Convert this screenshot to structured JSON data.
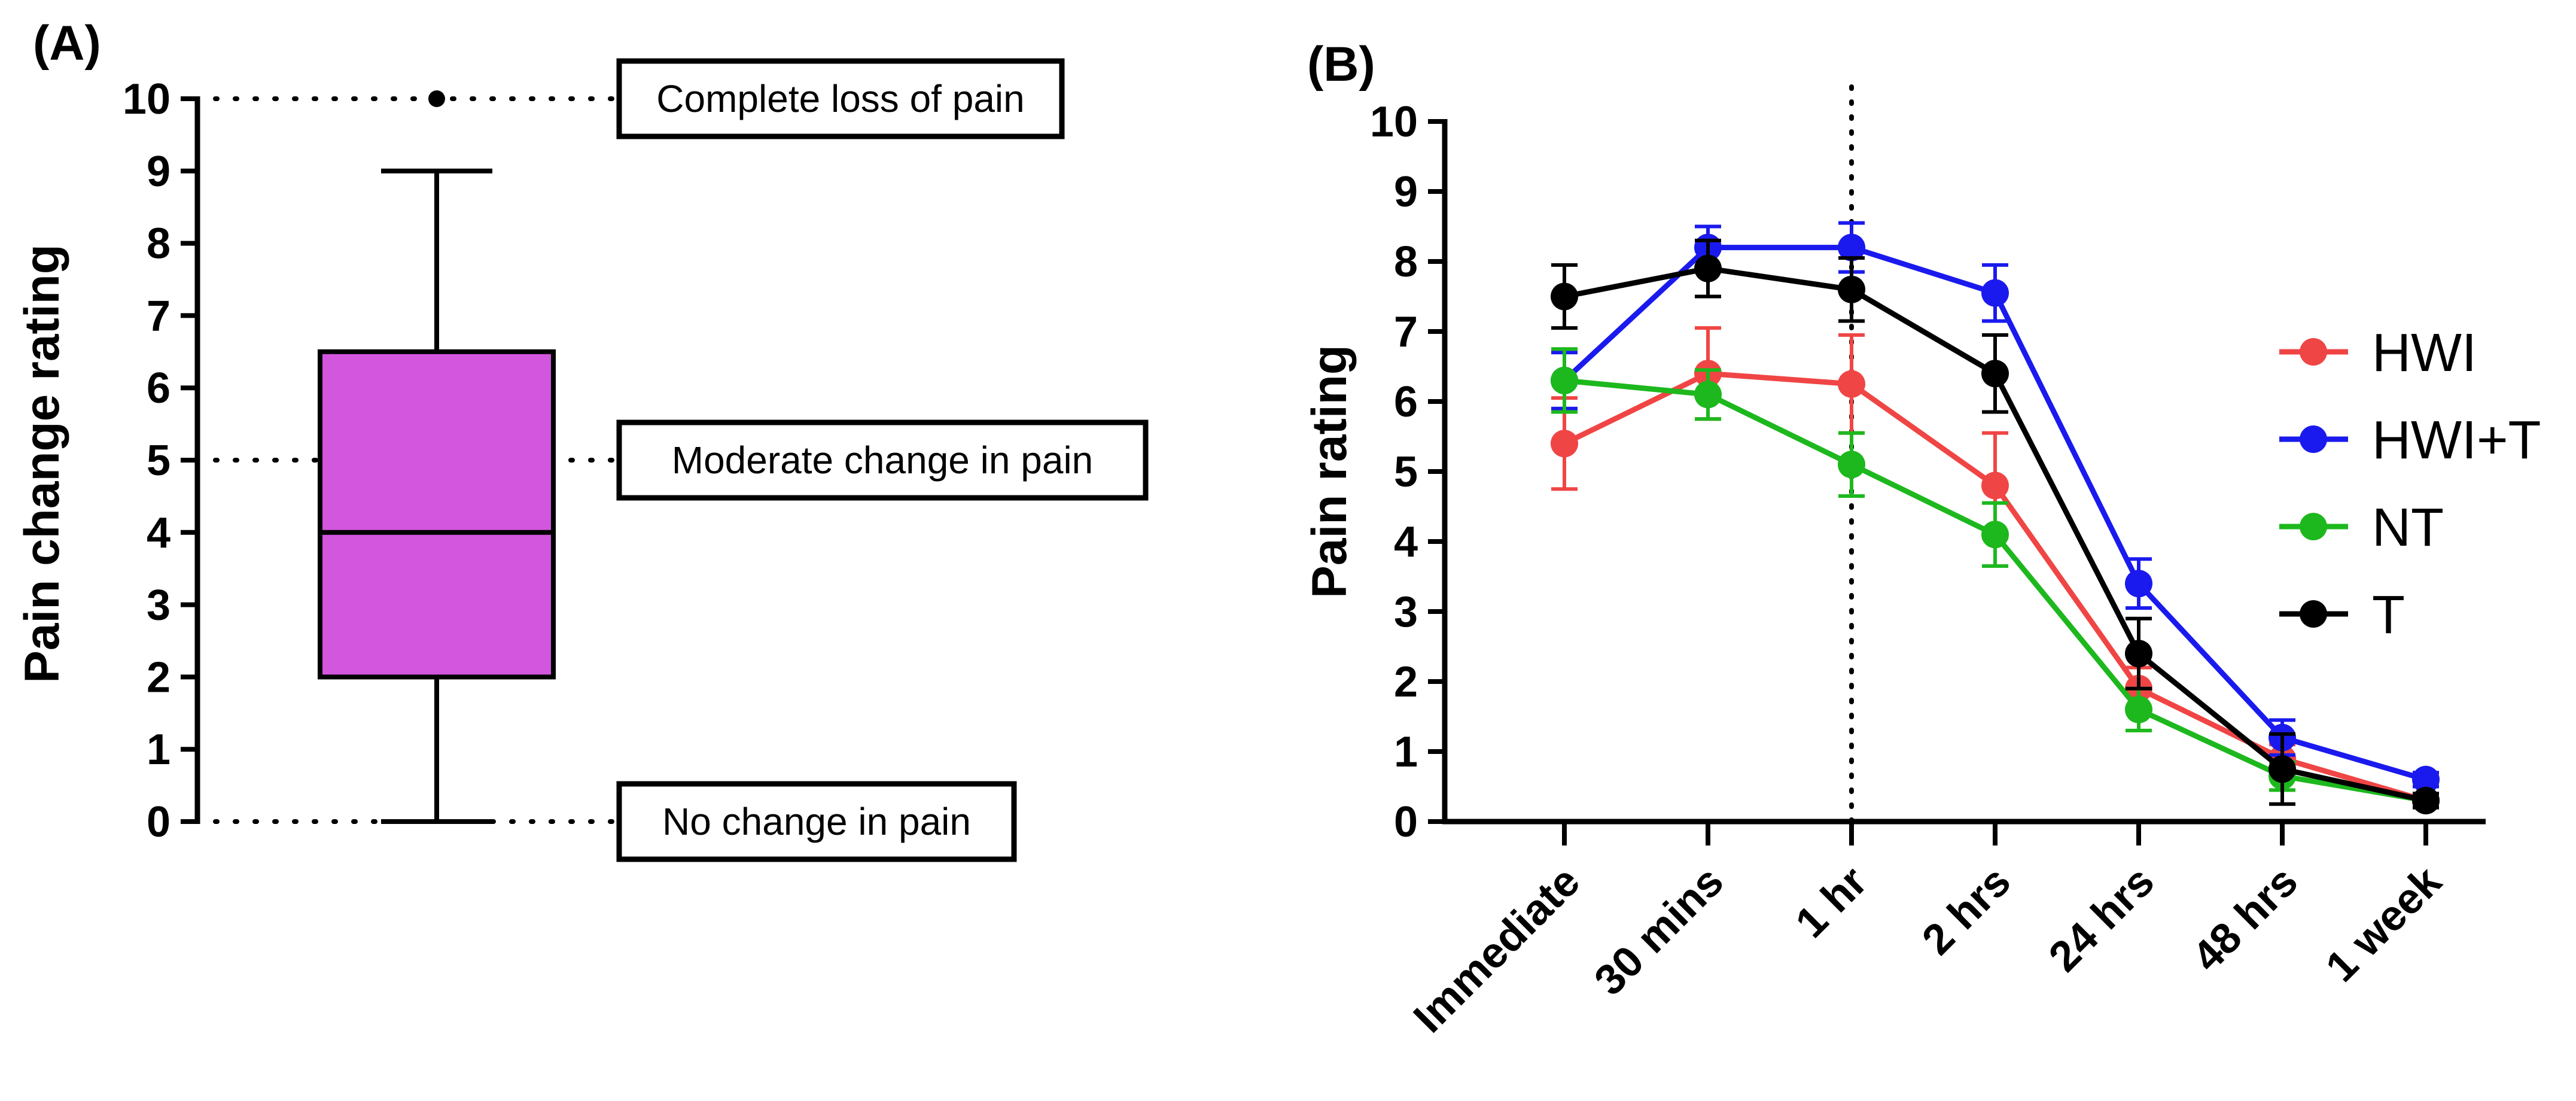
{
  "chart_data": [
    {
      "panel_label": "(A)",
      "type": "box",
      "ylabel": "Pain change rating",
      "ylim": [
        0,
        10
      ],
      "y_ticks": [
        "0",
        "1",
        "2",
        "3",
        "4",
        "5",
        "6",
        "7",
        "8",
        "9",
        "10"
      ],
      "box": {
        "whisker_low": 0,
        "q1": 2,
        "median": 4,
        "q3": 6.5,
        "whisker_high": 9,
        "outliers": [
          10
        ],
        "color": "#d256de"
      },
      "reference_lines": [
        {
          "value": 10,
          "label": "Complete loss of pain"
        },
        {
          "value": 5,
          "label": "Moderate change in pain"
        },
        {
          "value": 0,
          "label": "No change in pain"
        }
      ]
    },
    {
      "panel_label": "(B)",
      "type": "line",
      "ylabel": "Pain rating",
      "ylim": [
        0,
        10
      ],
      "y_ticks": [
        "0",
        "1",
        "2",
        "3",
        "4",
        "5",
        "6",
        "7",
        "8",
        "9",
        "10"
      ],
      "categories": [
        "Immediate",
        "30 mins",
        "1 hr",
        "2 hrs",
        "24 hrs",
        "48 hrs",
        "1 week"
      ],
      "vertical_reference_category": "1 hr",
      "legend_position": "right",
      "series": [
        {
          "name": "HWI",
          "color": "#f04545",
          "values": [
            5.4,
            6.4,
            6.25,
            4.8,
            1.9,
            0.9,
            0.3
          ],
          "errors": [
            0.65,
            0.65,
            0.7,
            0.75,
            0.3,
            0.2,
            0.1
          ]
        },
        {
          "name": "HWI+T",
          "color": "#1a1aee",
          "values": [
            6.3,
            8.2,
            8.2,
            7.55,
            3.4,
            1.2,
            0.6
          ],
          "errors": [
            0.4,
            0.3,
            0.35,
            0.4,
            0.35,
            0.25,
            0.1
          ]
        },
        {
          "name": "NT",
          "color": "#1db81d",
          "values": [
            6.3,
            6.1,
            5.1,
            4.1,
            1.6,
            0.65,
            0.3
          ],
          "errors": [
            0.45,
            0.35,
            0.45,
            0.45,
            0.3,
            0.2,
            0.1
          ]
        },
        {
          "name": "T",
          "color": "#000000",
          "values": [
            7.5,
            7.9,
            7.6,
            6.4,
            2.4,
            0.75,
            0.3
          ],
          "errors": [
            0.45,
            0.4,
            0.45,
            0.55,
            0.5,
            0.5,
            0.1
          ]
        }
      ]
    }
  ]
}
